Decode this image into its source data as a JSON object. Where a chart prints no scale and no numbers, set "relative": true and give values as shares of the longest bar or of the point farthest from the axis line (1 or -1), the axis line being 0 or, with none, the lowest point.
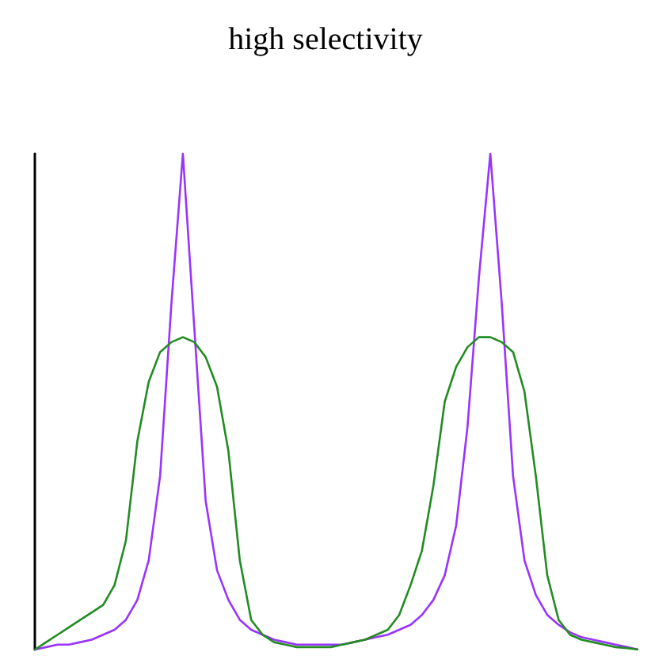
{
  "chart_data": {
    "type": "line",
    "title": "high selectivity",
    "relative": true,
    "line_style": "solid",
    "grid": false,
    "tick_labels": false,
    "categories": [
      null,
      null,
      null,
      null,
      null,
      null,
      null,
      null,
      null,
      null,
      null,
      null,
      null,
      null,
      null,
      null,
      null,
      null,
      null,
      null,
      null,
      null,
      null,
      null,
      null,
      null,
      null,
      null,
      null,
      null,
      null,
      null,
      null,
      null,
      null,
      null,
      null,
      null,
      null,
      null,
      null,
      null,
      null,
      null,
      null,
      null,
      null,
      null,
      null,
      null,
      null,
      null,
      null,
      null
    ],
    "series": [
      {
        "color": "#9933ff",
        "values": [
          0,
          0.005,
          0.01,
          0.01,
          0.015,
          0.02,
          0.03,
          0.04,
          0.06,
          0.1,
          0.18,
          0.35,
          0.7,
          1,
          0.65,
          0.3,
          0.16,
          0.1,
          0.06,
          0.04,
          0.03,
          0.02,
          0.015,
          0.01,
          0.01,
          0.01,
          0.01,
          0.01,
          0.015,
          0.02,
          0.025,
          0.03,
          0.04,
          0.05,
          0.07,
          0.1,
          0.15,
          0.25,
          0.45,
          0.75,
          1,
          0.7,
          0.35,
          0.18,
          0.11,
          0.07,
          0.05,
          0.035,
          0.025,
          0.02,
          0.015,
          0.01,
          0.005,
          0
        ]
      },
      {
        "color": "#228b22",
        "values": [
          0,
          0.015,
          0.03,
          0.045,
          0.06,
          0.075,
          0.09,
          0.13,
          0.22,
          0.42,
          0.54,
          0.6,
          0.62,
          0.63,
          0.62,
          0.59,
          0.53,
          0.4,
          0.18,
          0.06,
          0.03,
          0.015,
          0.01,
          0.005,
          0.005,
          0.005,
          0.005,
          0.01,
          0.015,
          0.02,
          0.03,
          0.04,
          0.07,
          0.13,
          0.2,
          0.33,
          0.5,
          0.57,
          0.61,
          0.63,
          0.63,
          0.62,
          0.6,
          0.52,
          0.35,
          0.15,
          0.06,
          0.03,
          0.02,
          0.015,
          0.01,
          0.005,
          0.003,
          0
        ]
      }
    ]
  }
}
